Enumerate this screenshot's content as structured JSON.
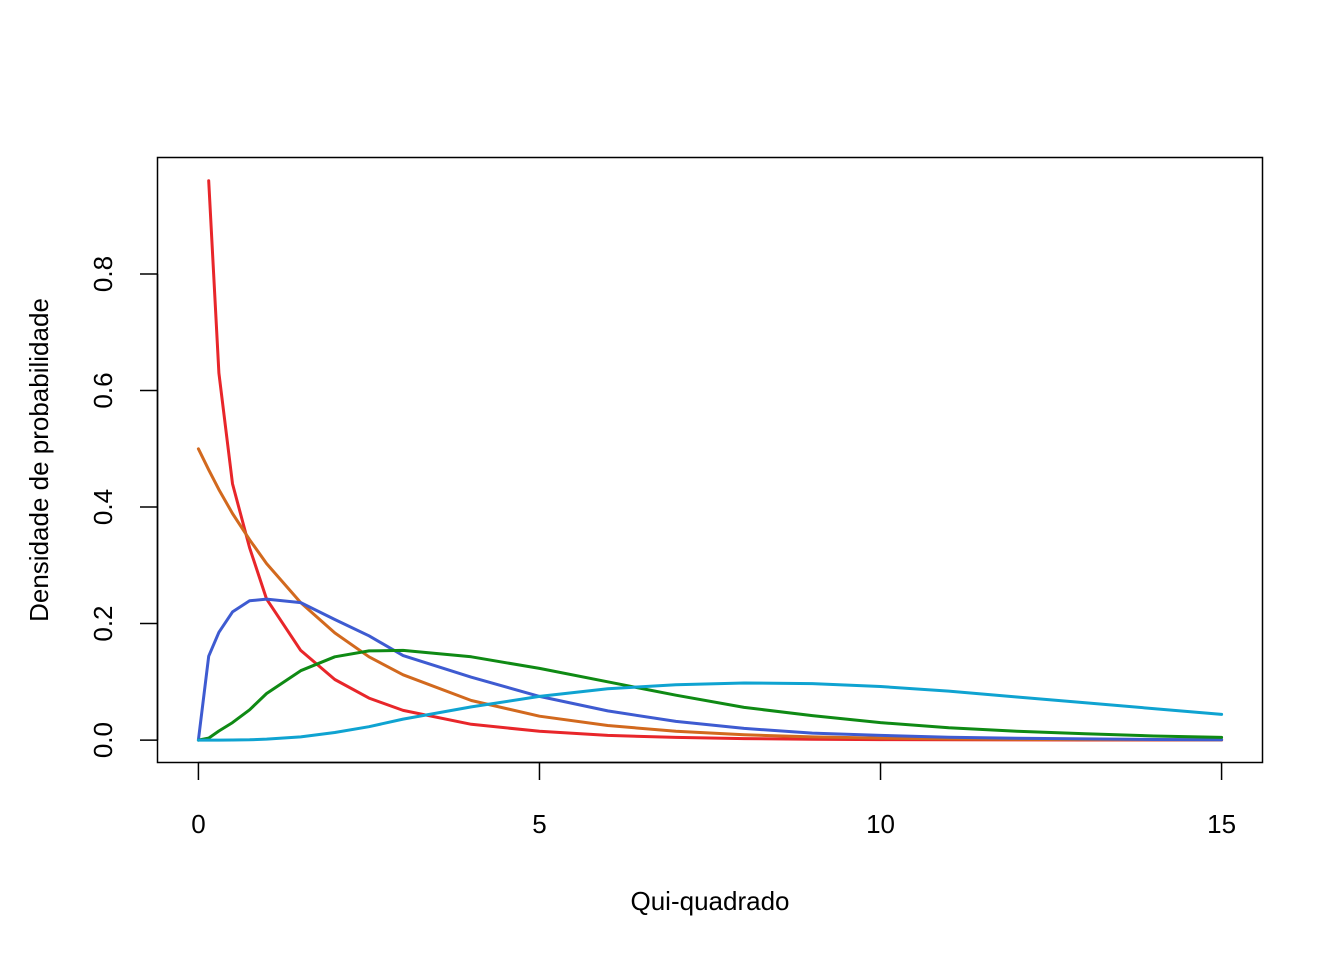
{
  "chart_data": {
    "type": "line",
    "title": "",
    "xlabel": "Qui-quadrado",
    "ylabel": "Densidade de probabilidade",
    "xlim": [
      -0.6,
      15.6
    ],
    "ylim": [
      -0.0385,
      1.0
    ],
    "x_ticks": [
      0,
      5,
      10,
      15
    ],
    "x_tick_labels": [
      "0",
      "5",
      "10",
      "15"
    ],
    "y_ticks": [
      0.0,
      0.2,
      0.4,
      0.6,
      0.8
    ],
    "y_tick_labels": [
      "0.0",
      "0.2",
      "0.4",
      "0.6",
      "0.8"
    ],
    "grid": false,
    "legend": "none",
    "x": [
      0.15,
      0.3,
      0.5,
      0.75,
      1.0,
      1.5,
      2.0,
      2.5,
      3.0,
      4.0,
      5.0,
      6.0,
      7.0,
      8.0,
      9.0,
      10.0,
      11.0,
      12.0,
      13.0,
      14.0,
      15.0
    ],
    "series": [
      {
        "color": "#e8262a",
        "values": [
          0.96,
          0.63,
          0.44,
          0.33,
          0.242,
          0.154,
          0.104,
          0.072,
          0.051,
          0.027,
          0.015,
          0.008,
          0.0045,
          0.0025,
          0.0015,
          0.0008,
          0.0005,
          0.0003,
          0.0002,
          0.0001,
          0.0001
        ]
      },
      {
        "color": "#d2691e",
        "start": [
          0,
          0.5
        ],
        "values": [
          0.464,
          0.43,
          0.389,
          0.344,
          0.303,
          0.236,
          0.184,
          0.143,
          0.112,
          0.068,
          0.041,
          0.025,
          0.015,
          0.009,
          0.0055,
          0.0034,
          0.002,
          0.0012,
          0.0008,
          0.0005,
          0.0003
        ]
      },
      {
        "color": "#3e5bd1",
        "start": [
          0,
          0
        ],
        "values": [
          0.144,
          0.185,
          0.22,
          0.239,
          0.242,
          0.236,
          0.207,
          0.179,
          0.145,
          0.108,
          0.075,
          0.05,
          0.032,
          0.02,
          0.012,
          0.008,
          0.005,
          0.003,
          0.002,
          0.001,
          0.0007
        ]
      },
      {
        "color": "#0f8a14",
        "start": [
          0,
          0
        ],
        "values": [
          0.0034,
          0.0156,
          0.03,
          0.052,
          0.08,
          0.119,
          0.143,
          0.153,
          0.154,
          0.143,
          0.123,
          0.1,
          0.077,
          0.056,
          0.042,
          0.03,
          0.021,
          0.015,
          0.011,
          0.007,
          0.0045
        ]
      },
      {
        "color": "#0fa3d1",
        "start": [
          0,
          0
        ],
        "values": [
          0.0,
          0.0,
          0.0001,
          0.0005,
          0.0016,
          0.0055,
          0.013,
          0.023,
          0.036,
          0.057,
          0.075,
          0.088,
          0.095,
          0.098,
          0.097,
          0.092,
          0.084,
          0.074,
          0.064,
          0.054,
          0.044
        ]
      }
    ]
  }
}
